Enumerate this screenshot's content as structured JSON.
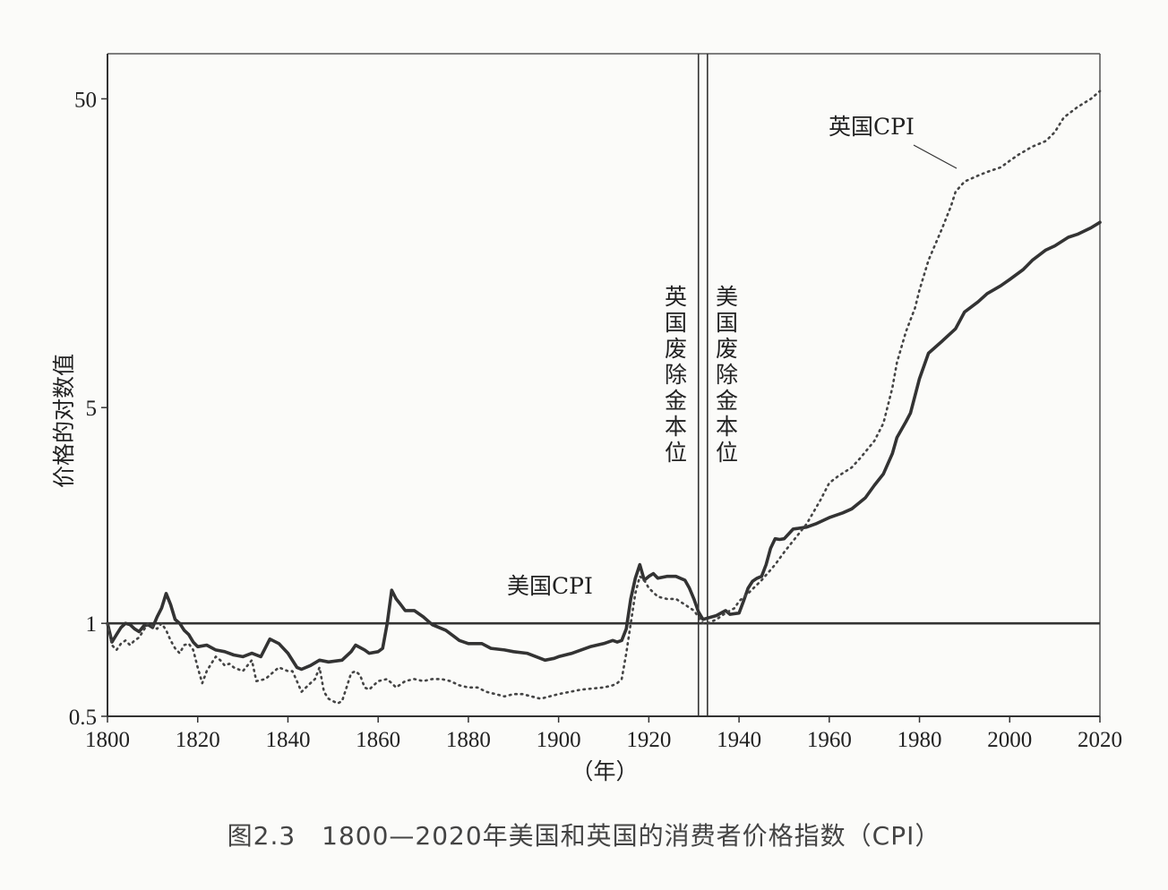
{
  "caption": "图2.3　1800—2020年美国和英国的消费者价格指数（CPI）",
  "chart_data": {
    "type": "line",
    "title": "",
    "xlabel": "（年）",
    "ylabel": "价格的对数值",
    "xlim": [
      1800,
      2020
    ],
    "ylim": [
      0.5,
      70
    ],
    "yscale": "log",
    "xticks": [
      1800,
      1820,
      1840,
      1860,
      1880,
      1900,
      1920,
      1940,
      1960,
      1980,
      2000,
      2020
    ],
    "xtick_labels": [
      "1800",
      "1820",
      "1840",
      "1860",
      "1880",
      "1900",
      "1920",
      "1940",
      "1960",
      "1980",
      "2000",
      "2020"
    ],
    "yticks": [
      0.5,
      1,
      5,
      50
    ],
    "ytick_labels": [
      "0.5",
      "1",
      "5",
      "50"
    ],
    "grid": false,
    "reference_line": {
      "y": 1
    },
    "series": [
      {
        "name": "美国CPI",
        "style": "solid",
        "color": "#333333",
        "x": [
          1800,
          1801,
          1802,
          1803,
          1804,
          1805,
          1806,
          1807,
          1808,
          1809,
          1810,
          1811,
          1812,
          1813,
          1814,
          1815,
          1816,
          1817,
          1818,
          1819,
          1820,
          1822,
          1824,
          1826,
          1828,
          1830,
          1832,
          1834,
          1836,
          1838,
          1840,
          1842,
          1843,
          1845,
          1847,
          1849,
          1852,
          1854,
          1855,
          1857,
          1858,
          1860,
          1861,
          1862,
          1863,
          1864,
          1865,
          1866,
          1868,
          1870,
          1872,
          1875,
          1878,
          1880,
          1883,
          1885,
          1888,
          1890,
          1893,
          1895,
          1897,
          1899,
          1900,
          1903,
          1905,
          1907,
          1910,
          1912,
          1913,
          1914,
          1915,
          1916,
          1917,
          1918,
          1919,
          1920,
          1921,
          1922,
          1924,
          1926,
          1928,
          1929,
          1930,
          1931,
          1932,
          1933,
          1935,
          1937,
          1938,
          1940,
          1941,
          1942,
          1943,
          1944,
          1945,
          1946,
          1947,
          1948,
          1949,
          1950,
          1952,
          1955,
          1957,
          1960,
          1963,
          1965,
          1968,
          1970,
          1972,
          1974,
          1975,
          1977,
          1978,
          1980,
          1982,
          1985,
          1988,
          1990,
          1993,
          1995,
          1998,
          2000,
          2003,
          2005,
          2008,
          2010,
          2013,
          2015,
          2018,
          2020
        ],
        "y": [
          1.0,
          0.87,
          0.92,
          0.97,
          1.0,
          0.99,
          0.96,
          0.94,
          0.98,
          0.99,
          0.97,
          1.05,
          1.12,
          1.25,
          1.15,
          1.03,
          1.0,
          0.95,
          0.92,
          0.87,
          0.84,
          0.85,
          0.82,
          0.81,
          0.79,
          0.78,
          0.8,
          0.78,
          0.89,
          0.86,
          0.8,
          0.72,
          0.71,
          0.73,
          0.76,
          0.75,
          0.76,
          0.81,
          0.85,
          0.82,
          0.8,
          0.81,
          0.83,
          1.0,
          1.28,
          1.2,
          1.15,
          1.1,
          1.1,
          1.05,
          0.99,
          0.95,
          0.88,
          0.86,
          0.86,
          0.83,
          0.82,
          0.81,
          0.8,
          0.78,
          0.76,
          0.77,
          0.78,
          0.8,
          0.82,
          0.84,
          0.86,
          0.88,
          0.87,
          0.88,
          0.96,
          1.2,
          1.4,
          1.55,
          1.38,
          1.42,
          1.45,
          1.4,
          1.42,
          1.42,
          1.38,
          1.3,
          1.2,
          1.09,
          1.03,
          1.04,
          1.06,
          1.1,
          1.07,
          1.08,
          1.18,
          1.3,
          1.37,
          1.4,
          1.42,
          1.55,
          1.75,
          1.88,
          1.87,
          1.88,
          2.02,
          2.05,
          2.1,
          2.2,
          2.28,
          2.35,
          2.55,
          2.8,
          3.05,
          3.55,
          4.0,
          4.5,
          4.8,
          6.2,
          7.5,
          8.2,
          9.0,
          10.2,
          11.0,
          11.7,
          12.4,
          13.0,
          14.0,
          15.0,
          16.2,
          16.7,
          17.8,
          18.2,
          19.1,
          19.9
        ]
      },
      {
        "name": "英国CPI",
        "style": "dotted",
        "color": "#444444",
        "x": [
          1800,
          1801,
          1802,
          1803,
          1804,
          1805,
          1806,
          1807,
          1808,
          1809,
          1810,
          1811,
          1812,
          1813,
          1814,
          1815,
          1816,
          1817,
          1818,
          1819,
          1820,
          1821,
          1822,
          1823,
          1824,
          1825,
          1826,
          1827,
          1828,
          1830,
          1832,
          1833,
          1835,
          1837,
          1838,
          1840,
          1841,
          1842,
          1843,
          1844,
          1845,
          1846,
          1847,
          1848,
          1849,
          1850,
          1851,
          1852,
          1853,
          1854,
          1855,
          1856,
          1857,
          1858,
          1860,
          1862,
          1864,
          1866,
          1868,
          1870,
          1872,
          1874,
          1876,
          1878,
          1880,
          1882,
          1884,
          1886,
          1888,
          1890,
          1892,
          1894,
          1896,
          1898,
          1900,
          1905,
          1910,
          1912,
          1913,
          1914,
          1915,
          1916,
          1917,
          1918,
          1919,
          1920,
          1921,
          1922,
          1924,
          1926,
          1928,
          1930,
          1931,
          1932,
          1933,
          1935,
          1937,
          1939,
          1940,
          1942,
          1945,
          1948,
          1950,
          1952,
          1955,
          1958,
          1960,
          1962,
          1965,
          1967,
          1970,
          1972,
          1974,
          1975,
          1977,
          1979,
          1980,
          1982,
          1985,
          1987,
          1988,
          1990,
          1993,
          1995,
          1998,
          2000,
          2002,
          2005,
          2008,
          2010,
          2012,
          2015,
          2018,
          2020
        ],
        "y": [
          1.0,
          0.85,
          0.82,
          0.86,
          0.88,
          0.85,
          0.88,
          0.9,
          0.95,
          1.0,
          0.98,
          0.96,
          1.0,
          0.95,
          0.88,
          0.83,
          0.8,
          0.85,
          0.86,
          0.82,
          0.72,
          0.64,
          0.7,
          0.74,
          0.78,
          0.76,
          0.73,
          0.74,
          0.72,
          0.7,
          0.76,
          0.65,
          0.66,
          0.7,
          0.72,
          0.7,
          0.7,
          0.65,
          0.6,
          0.62,
          0.64,
          0.66,
          0.72,
          0.6,
          0.57,
          0.56,
          0.55,
          0.56,
          0.62,
          0.69,
          0.7,
          0.68,
          0.62,
          0.61,
          0.65,
          0.66,
          0.62,
          0.65,
          0.66,
          0.65,
          0.66,
          0.66,
          0.65,
          0.63,
          0.62,
          0.62,
          0.6,
          0.59,
          0.58,
          0.59,
          0.59,
          0.58,
          0.57,
          0.58,
          0.59,
          0.61,
          0.62,
          0.63,
          0.64,
          0.66,
          0.8,
          1.0,
          1.25,
          1.42,
          1.38,
          1.3,
          1.26,
          1.22,
          1.2,
          1.2,
          1.15,
          1.1,
          1.05,
          1.0,
          1.0,
          1.03,
          1.08,
          1.12,
          1.18,
          1.25,
          1.38,
          1.55,
          1.7,
          1.85,
          2.1,
          2.5,
          2.85,
          3.0,
          3.2,
          3.45,
          3.9,
          4.45,
          5.8,
          7.0,
          8.8,
          10.5,
          12.0,
          15.0,
          19.0,
          22.5,
          25.0,
          27.0,
          28.2,
          29.0,
          30.0,
          31.5,
          33.0,
          35.0,
          36.5,
          39.0,
          43.5,
          47.0,
          50.0,
          53.0
        ]
      }
    ],
    "annotations": {
      "uk_cpi_label": "英国CPI",
      "us_cpi_label": "美国CPI",
      "uk_gold_label": "英国废除金本位",
      "us_gold_label": "美国废除金本位"
    },
    "vertical_lines": [
      {
        "x": 1931,
        "label": "英国废除金本位"
      },
      {
        "x": 1933,
        "label": "美国废除金本位"
      }
    ]
  }
}
